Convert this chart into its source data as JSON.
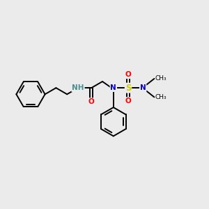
{
  "bg_color": "#ebebeb",
  "atom_colors": {
    "N": "#0000cc",
    "O": "#ff0000",
    "S": "#cccc00",
    "NH": "#4a9090"
  },
  "bond_color": "#000000",
  "figsize": [
    3.0,
    3.0
  ],
  "dpi": 100,
  "bond_lw": 1.4,
  "font_size_atom": 7.5,
  "font_size_small": 6.5
}
